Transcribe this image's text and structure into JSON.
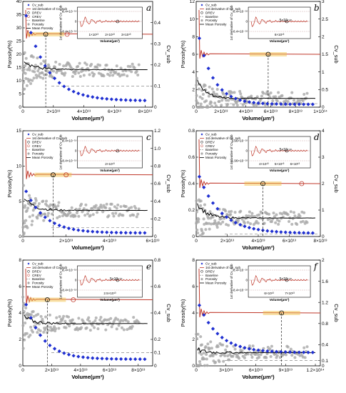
{
  "figure": {
    "background": "#ffffff"
  },
  "colors": {
    "cv": "#1f2fd1",
    "deriv": "#c0392b",
    "porosity": "#a8a8a8",
    "mean": "#000000",
    "baseline": "#888888",
    "band": "#f2c24e"
  },
  "legend_labels": [
    "Cv_sub",
    "1st derivative of Cv_sub",
    "DREV",
    "CREV",
    "Baseline",
    "Porosity",
    "Mean Porosity"
  ],
  "axis_titles": {
    "x": "Volume(μm³)",
    "y_left": "Porosity(%)",
    "y_right": "Cv_sub"
  },
  "inset_titles": {
    "x": "Volume(μm³)",
    "y": "1st derivative of Cv_sub"
  },
  "chart_data": [
    {
      "type": "scatter",
      "panel": "a",
      "legend": [
        "Cv_sub",
        "1st derivative of Cv_sub",
        "DREV",
        "CREV",
        "Baseline",
        "Porosity",
        "Mean Porosity"
      ],
      "xlabel": "Volume(μm³)",
      "ylabel": "Porosity(%)",
      "ylabel_right": "Cv_sub",
      "xlim": [
        0,
        85000000000000.0
      ],
      "ylim": [
        0,
        40
      ],
      "ylim_right": [
        0,
        0.5
      ],
      "xticks": [
        {
          "v": 0,
          "t": "0"
        },
        {
          "v": 20000000000000.0,
          "t": "2×10¹³"
        },
        {
          "v": 40000000000000.0,
          "t": "4×10¹³"
        },
        {
          "v": 60000000000000.0,
          "t": "6×10¹³"
        },
        {
          "v": 80000000000000.0,
          "t": "8×10¹³"
        }
      ],
      "yticks": [
        {
          "v": 0,
          "t": "0"
        },
        {
          "v": 5,
          "t": "5"
        },
        {
          "v": 10,
          "t": "10"
        },
        {
          "v": 15,
          "t": "15"
        },
        {
          "v": 20,
          "t": "20"
        },
        {
          "v": 25,
          "t": "25"
        },
        {
          "v": 30,
          "t": "30"
        },
        {
          "v": 35,
          "t": "35"
        },
        {
          "v": 40,
          "t": "40"
        }
      ],
      "yticks_right": [
        {
          "v": 0,
          "t": "0"
        },
        {
          "v": 0.1,
          "t": "0.1"
        },
        {
          "v": 0.2,
          "t": "0.2"
        },
        {
          "v": 0.3,
          "t": "0.3"
        },
        {
          "v": 0.4,
          "t": "0.4"
        }
      ],
      "porosity_level": 20.5,
      "mean_level": 14.2,
      "mean_start": 18,
      "cv_start": 0.5,
      "cv_end": 0.03,
      "cv_decay": 14000000000000.0,
      "drev": 15000000000000.0,
      "crev": 29000000000000.0,
      "baseline_right": 0.1,
      "deriv_level": 0.345,
      "inset": {
        "yticks": [
          "8.4×10⁻¹⁸",
          "0",
          "-8.4×10⁻¹⁸"
        ],
        "xticks": [
          "1×10¹³",
          "2×10¹³",
          "3×10¹³"
        ],
        "annot": ""
      }
    },
    {
      "type": "scatter",
      "panel": "b",
      "legend": [
        "Cv_sub",
        "1st derivative of Cv_sub",
        "DREV",
        "Baseline",
        "Porosity",
        "Mean Porosity"
      ],
      "xlabel": "Volume(μm³)",
      "ylabel": "Porosity(%)",
      "ylabel_right": "Cv_sub",
      "xlim": [
        0,
        100000000000000.0
      ],
      "ylim": [
        0,
        12
      ],
      "ylim_right": [
        0,
        3
      ],
      "xticks": [
        {
          "v": 0,
          "t": "0"
        },
        {
          "v": 20000000000000.0,
          "t": "2×10¹³"
        },
        {
          "v": 40000000000000.0,
          "t": "4×10¹³"
        },
        {
          "v": 60000000000000.0,
          "t": "6×10¹³"
        },
        {
          "v": 80000000000000.0,
          "t": "8×10¹³"
        },
        {
          "v": 100000000000000.0,
          "t": "1×10¹⁴"
        }
      ],
      "yticks": [
        {
          "v": 0,
          "t": "0"
        },
        {
          "v": 2,
          "t": "2"
        },
        {
          "v": 4,
          "t": "4"
        },
        {
          "v": 6,
          "t": "6"
        },
        {
          "v": 8,
          "t": "8"
        },
        {
          "v": 10,
          "t": "10"
        },
        {
          "v": 12,
          "t": "12"
        }
      ],
      "yticks_right": [
        {
          "v": 0,
          "t": "0"
        },
        {
          "v": 0.5,
          "t": "0.5"
        },
        {
          "v": 1,
          "t": "1"
        },
        {
          "v": 1.5,
          "t": "1.5"
        },
        {
          "v": 2,
          "t": "2"
        },
        {
          "v": 2.5,
          "t": "2.5"
        },
        {
          "v": 3,
          "t": "3"
        }
      ],
      "porosity_level": 6.0,
      "mean_level": 1.0,
      "mean_start": 3,
      "cv_start": 2.4,
      "cv_end": 0.08,
      "cv_decay": 12000000000000.0,
      "drev": 58000000000000.0,
      "crev": null,
      "baseline_right": 0.1,
      "deriv_level": 1.5,
      "inset": {
        "yticks": [
          "8.4×10⁻¹⁸",
          "0",
          "-8.4×10⁻¹⁸"
        ],
        "xticks": [
          "6×10¹³"
        ],
        "annot": "5×10⁻¹⁶"
      }
    },
    {
      "type": "scatter",
      "panel": "c",
      "legend": [
        "Cv_sub",
        "1st derivative of Cv_sub",
        "DREV",
        "CREV",
        "Baseline",
        "Porosity",
        "Mean Porosity"
      ],
      "xlabel": "Volume(μm³)",
      "ylabel": "Porosity(%)",
      "ylabel_right": "Cv_sub",
      "xlim": [
        0,
        60000000000000.0
      ],
      "ylim": [
        0,
        15
      ],
      "ylim_right": [
        0,
        1.2
      ],
      "xticks": [
        {
          "v": 0,
          "t": "0"
        },
        {
          "v": 20000000000000.0,
          "t": "2×10¹³"
        },
        {
          "v": 40000000000000.0,
          "t": "4×10¹³"
        },
        {
          "v": 60000000000000.0,
          "t": "6×10¹³"
        }
      ],
      "yticks": [
        {
          "v": 0,
          "t": "0"
        },
        {
          "v": 5,
          "t": "5"
        },
        {
          "v": 10,
          "t": "10"
        },
        {
          "v": 15,
          "t": "15"
        }
      ],
      "yticks_right": [
        {
          "v": 0,
          "t": "0"
        },
        {
          "v": 0.2,
          "t": "0.2"
        },
        {
          "v": 0.4,
          "t": "0.4"
        },
        {
          "v": 0.6,
          "t": "0.6"
        },
        {
          "v": 0.8,
          "t": "0.8"
        },
        {
          "v": 1.0,
          "t": "1.0"
        },
        {
          "v": 1.2,
          "t": "1.2"
        }
      ],
      "porosity_level": 8.8,
      "mean_level": 3.7,
      "mean_start": 5.6,
      "cv_start": 0.6,
      "cv_end": 0.04,
      "cv_decay": 9000000000000.0,
      "drev": 14000000000000.0,
      "crev": 20000000000000.0,
      "baseline_right": 0.1,
      "deriv_level": 0.7,
      "inset": {
        "yticks": [
          "8.4×10⁻¹⁸",
          "0",
          "-8.4×10⁻¹⁸"
        ],
        "xticks": [
          "2×10¹³"
        ],
        "annot": ""
      }
    },
    {
      "type": "scatter",
      "panel": "d",
      "legend": [
        "Cv_sub",
        "1st derivative of Cv_sub",
        "DREV",
        "CREV",
        "Baseline",
        "Porosity",
        "Mean Porosity"
      ],
      "xlabel": "Volume(μm³)",
      "ylabel": "Porosity(%)",
      "ylabel_right": "Cv_sub",
      "xlim": [
        0,
        80000000000000.0
      ],
      "ylim": [
        0,
        0.8
      ],
      "ylim_right": [
        0,
        4
      ],
      "xticks": [
        {
          "v": 0,
          "t": "0"
        },
        {
          "v": 20000000000000.0,
          "t": "2×10¹³"
        },
        {
          "v": 40000000000000.0,
          "t": "4×10¹³"
        },
        {
          "v": 60000000000000.0,
          "t": "6×10¹³"
        },
        {
          "v": 80000000000000.0,
          "t": "8×10¹³"
        }
      ],
      "yticks": [
        {
          "v": 0,
          "t": "0"
        },
        {
          "v": 0.2,
          "t": "0.2"
        },
        {
          "v": 0.4,
          "t": "0.4"
        },
        {
          "v": 0.6,
          "t": "0.6"
        },
        {
          "v": 0.8,
          "t": "0.8"
        }
      ],
      "yticks_right": [
        {
          "v": 0,
          "t": "0"
        },
        {
          "v": 1,
          "t": "1"
        },
        {
          "v": 2,
          "t": "2"
        },
        {
          "v": 3,
          "t": "3"
        },
        {
          "v": 4,
          "t": "4"
        }
      ],
      "porosity_level": 0.4,
      "mean_level": 0.14,
      "mean_start": 0.25,
      "cv_start": 2.6,
      "cv_end": 0.12,
      "cv_decay": 14000000000000.0,
      "drev": 43000000000000.0,
      "crev": 68000000000000.0,
      "baseline_right": 0.1,
      "deriv_level": 2.0,
      "inset": {
        "yticks": [
          "1.96×10⁻¹⁸",
          "0",
          "-1.96×10⁻¹⁸"
        ],
        "xticks": [
          "4×10¹³",
          "5×10¹³",
          "6×10¹³"
        ],
        "annot": "5×10⁻¹⁶"
      }
    },
    {
      "type": "scatter",
      "panel": "e",
      "legend": [
        "Cv_sub",
        "1st derivative of Cv_sub",
        "DREV",
        "CREV",
        "Baseline",
        "Porosity",
        "Mean Porosity"
      ],
      "xlabel": "Volume(μm³)",
      "ylabel": "Porosity(%)",
      "ylabel_right": "Cv_sub",
      "xlim": [
        0,
        90000000000000.0
      ],
      "ylim": [
        0,
        8
      ],
      "ylim_right": [
        0,
        0.8
      ],
      "xticks": [
        {
          "v": 0,
          "t": "0"
        },
        {
          "v": 20000000000000.0,
          "t": "2×10¹³"
        },
        {
          "v": 40000000000000.0,
          "t": "4×10¹³"
        },
        {
          "v": 60000000000000.0,
          "t": "6×10¹³"
        },
        {
          "v": 80000000000000.0,
          "t": "8×10¹³"
        }
      ],
      "yticks": [
        {
          "v": 0,
          "t": "0"
        },
        {
          "v": 2,
          "t": "2"
        },
        {
          "v": 4,
          "t": "4"
        },
        {
          "v": 6,
          "t": "6"
        },
        {
          "v": 8,
          "t": "8"
        }
      ],
      "yticks_right": [
        {
          "v": 0,
          "t": "0"
        },
        {
          "v": 0.1,
          "t": "0.1"
        },
        {
          "v": 0.2,
          "t": "0.2"
        },
        {
          "v": 0.4,
          "t": "0.4"
        },
        {
          "v": 0.6,
          "t": "0.6"
        },
        {
          "v": 0.8,
          "t": "0.8"
        }
      ],
      "porosity_level": 5.0,
      "mean_level": 3.2,
      "mean_start": 3.7,
      "cv_start": 0.55,
      "cv_end": 0.05,
      "cv_decay": 12000000000000.0,
      "drev": 17000000000000.0,
      "crev": 35000000000000.0,
      "baseline_right": 0.1,
      "deriv_level": 0.5,
      "inset": {
        "yticks": [
          "8.4×10⁻¹⁸",
          "0",
          "-8.4×10⁻¹⁸"
        ],
        "xticks": [
          "2.5×10¹³"
        ],
        "annot": "5×10⁻¹⁶"
      }
    },
    {
      "type": "scatter",
      "panel": "f",
      "legend": [
        "Cv_sub",
        "1st derivative of Cv_sub",
        "DREV",
        "Baseline",
        "Porosity",
        "Mean Porosity"
      ],
      "xlabel": "Volume(μm³)",
      "ylabel": "Porosity(%)",
      "ylabel_right": "Cv_sub",
      "xlim": [
        0,
        125000000000000.0
      ],
      "ylim": [
        0,
        8
      ],
      "ylim_right": [
        0,
        2
      ],
      "xticks": [
        {
          "v": 0,
          "t": "0"
        },
        {
          "v": 30000000000000.0,
          "t": "3×10¹³"
        },
        {
          "v": 60000000000000.0,
          "t": "6×10¹³"
        },
        {
          "v": 90000000000000.0,
          "t": "9×10¹³"
        },
        {
          "v": 120000000000000.0,
          "t": "1.2×10¹⁴"
        }
      ],
      "yticks": [
        {
          "v": 0,
          "t": "0"
        },
        {
          "v": 2,
          "t": "2"
        },
        {
          "v": 4,
          "t": "4"
        },
        {
          "v": 6,
          "t": "6"
        },
        {
          "v": 8,
          "t": "8"
        }
      ],
      "yticks_right": [
        {
          "v": 0,
          "t": "0"
        },
        {
          "v": 0.1,
          "t": "0.1"
        },
        {
          "v": 0.4,
          "t": "0.4"
        },
        {
          "v": 0.8,
          "t": "0.8"
        },
        {
          "v": 1.2,
          "t": "1.2"
        },
        {
          "v": 1.6,
          "t": "1.6"
        },
        {
          "v": 2,
          "t": "2"
        }
      ],
      "porosity_level": 4.0,
      "mean_level": 1.0,
      "mean_start": 1.2,
      "cv_start": 1.3,
      "cv_end": 0.25,
      "cv_decay": 20000000000000.0,
      "drev": 86000000000000.0,
      "crev": null,
      "baseline_right": 0.1,
      "deriv_level": 1.0,
      "inset": {
        "yticks": [
          "8.4×10⁻¹⁸",
          "0",
          "-8.4×10⁻¹⁸"
        ],
        "xticks": [
          "6×10¹³",
          "7×10¹³"
        ],
        "annot": "5×10⁻¹⁶"
      }
    }
  ]
}
